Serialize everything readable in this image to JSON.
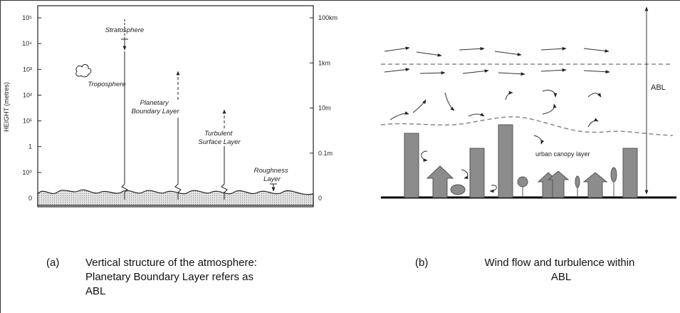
{
  "panel_a": {
    "axis_label": "HEIGHT (metres)",
    "left_ticks": [
      "10⁵",
      "10⁴",
      "10³",
      "10²",
      "10¹",
      "1",
      "10⁰",
      "0"
    ],
    "right_ticks": [
      "100km",
      "1km",
      "10m",
      "0.1m",
      "0"
    ],
    "stratosphere": "Stratosphere",
    "troposphere": "Troposphere",
    "planetary_boundary_layer": [
      "Planetary",
      "Boundary Layer"
    ],
    "turbulent_surface_layer": [
      "Turbulent",
      "Surface Layer"
    ],
    "roughness_layer": [
      "Roughness",
      "Layer"
    ]
  },
  "panel_b": {
    "abl": "ABL",
    "urban_canopy_layer": "urban canopy layer"
  },
  "captions": [
    {
      "label": "(a)",
      "lines": [
        "Vertical structure of the atmosphere:",
        "Planetary Boundary Layer refers as",
        "ABL"
      ]
    },
    {
      "label": "(b)",
      "lines": [
        "Wind flow and turbulence within",
        "ABL"
      ]
    }
  ]
}
